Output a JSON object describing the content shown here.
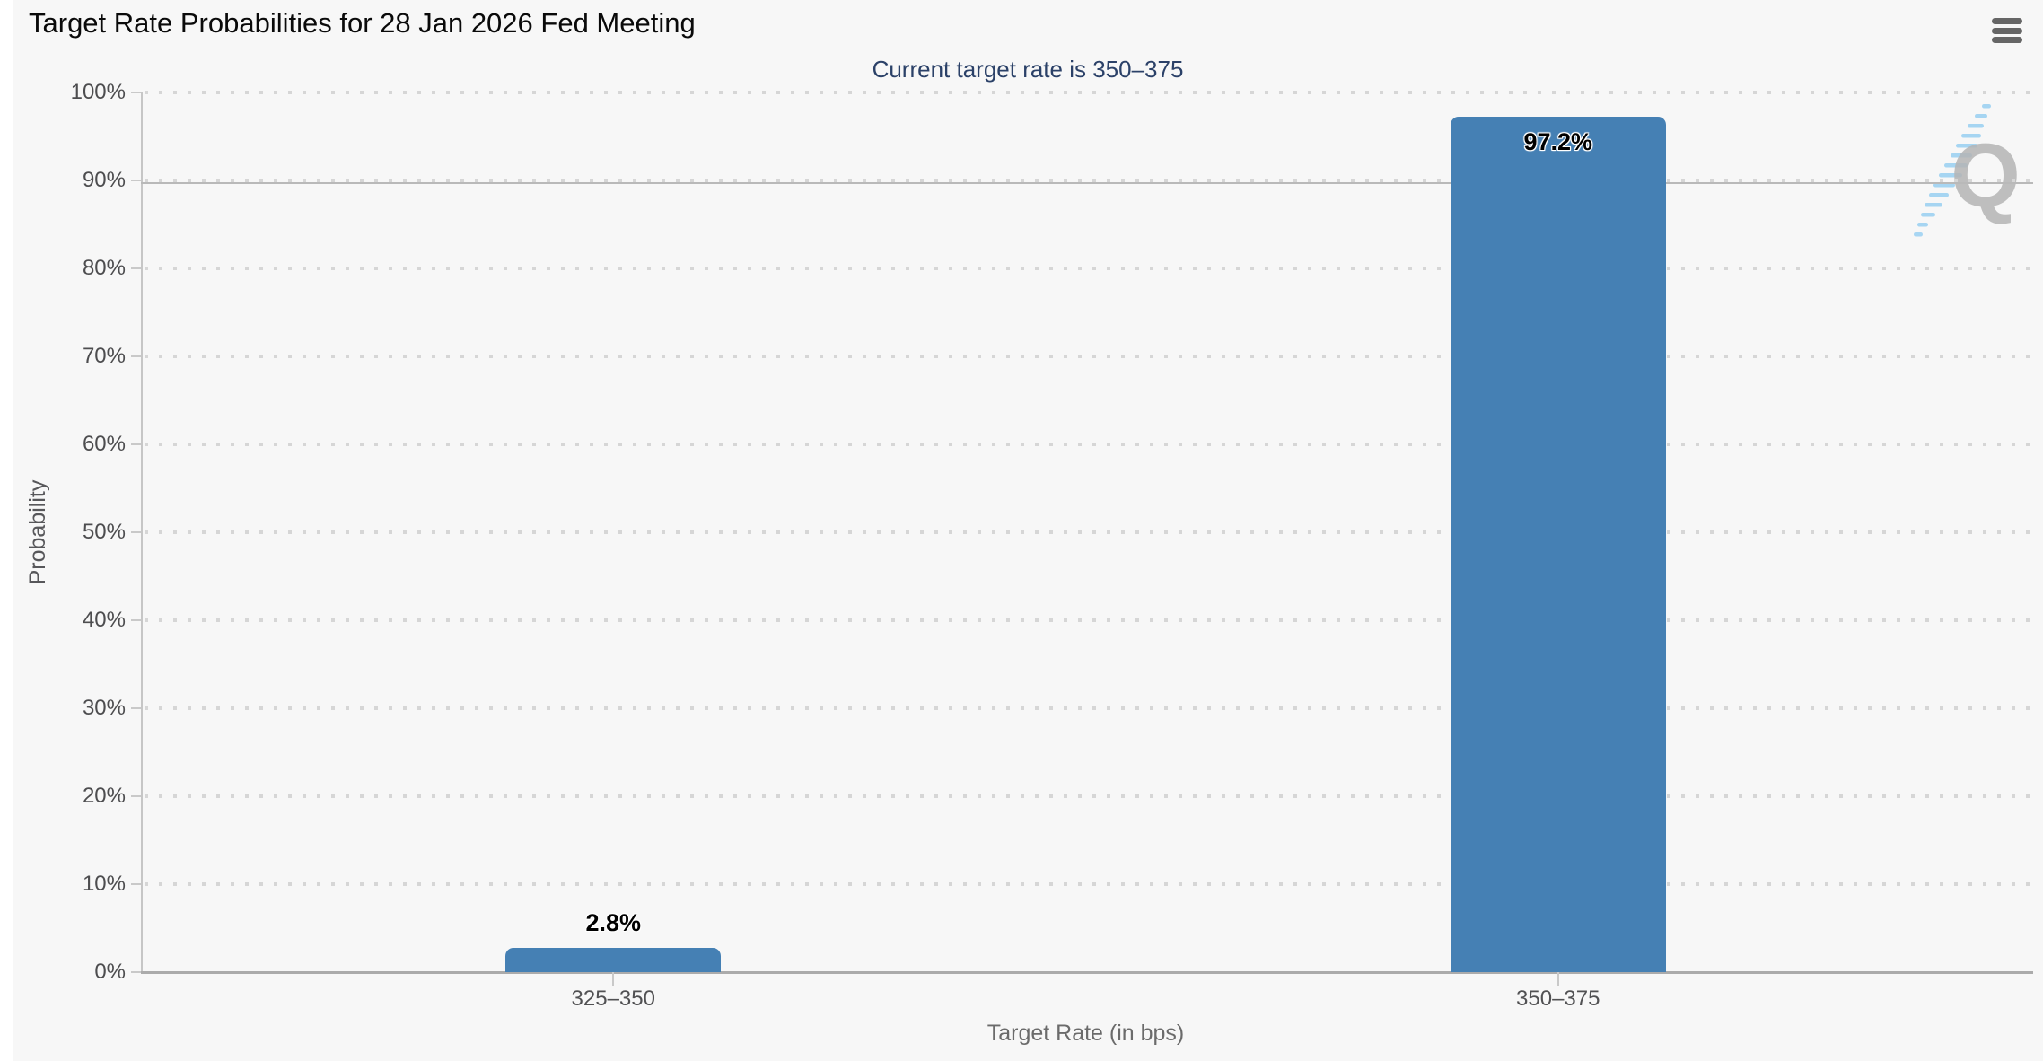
{
  "chart": {
    "watermark_letter": "Q"
  },
  "icons": {
    "menu": "hamburger-menu-icon",
    "watermark_hash": "blue-dash-slash-icon"
  },
  "colors": {
    "background": "#f7f7f7",
    "bar": "#4580b4",
    "subtitle_text": "#2b4168",
    "axis_text": "#4d4d4f",
    "muted_text": "#6b6b6b",
    "gridline": "#d6d6d6",
    "plot_line": "#b9b9b9",
    "watermark_gray": "#b5b5b5",
    "watermark_blue": "#9ed2f2"
  },
  "chart_data": {
    "type": "bar",
    "title": "Target Rate Probabilities for 28 Jan 2026 Fed Meeting",
    "subtitle": "Current target rate is 350–375",
    "categories": [
      "325–350",
      "350–375"
    ],
    "values": [
      2.8,
      97.2
    ],
    "value_labels": [
      "2.8%",
      "97.2%"
    ],
    "series": [
      {
        "name": "Probability",
        "values": [
          2.8,
          97.2
        ]
      }
    ],
    "xlabel": "Target Rate (in bps)",
    "ylabel": "Probability",
    "ylim": [
      0,
      100
    ],
    "ytick_values": [
      0,
      10,
      20,
      30,
      40,
      50,
      60,
      70,
      80,
      90,
      100
    ],
    "ytick_labels": [
      "0%",
      "10%",
      "20%",
      "30%",
      "40%",
      "50%",
      "60%",
      "70%",
      "80%",
      "90%",
      "100%"
    ],
    "plot_line_value": 90,
    "grid": "dotted-horizontal",
    "legend": "none",
    "bar_color": "#4580b4"
  }
}
